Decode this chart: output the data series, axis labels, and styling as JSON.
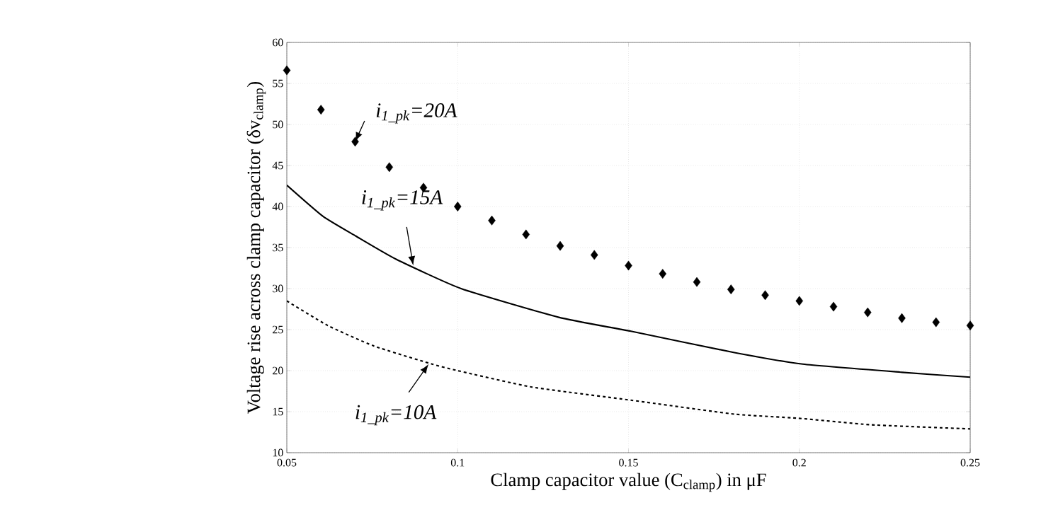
{
  "chart_data": {
    "type": "line",
    "xlabel": "Clamp capacitor value (C$_{clamp}$) in μF",
    "ylabel": "Voltage rise across clamp capacitor (δv$_{clamp}$)",
    "xlim": [
      0.05,
      0.25
    ],
    "xticks": [
      0.05,
      0.1,
      0.15,
      0.2,
      0.25
    ],
    "ylim": [
      10,
      60
    ],
    "yticks": [
      10,
      15,
      20,
      25,
      30,
      35,
      40,
      45,
      50,
      55,
      60
    ],
    "grid": true,
    "series": [
      {
        "type": "scatter",
        "marker": "diamond",
        "color": "#000000",
        "x": [
          0.05,
          0.06,
          0.07,
          0.08,
          0.09,
          0.1,
          0.11,
          0.12,
          0.13,
          0.14,
          0.15,
          0.16,
          0.17,
          0.18,
          0.19,
          0.2,
          0.21,
          0.22,
          0.23,
          0.24,
          0.25
        ],
        "values": [
          56.6,
          51.8,
          47.9,
          44.8,
          42.3,
          40.0,
          38.3,
          36.6,
          35.2,
          34.1,
          32.8,
          31.8,
          30.8,
          29.9,
          29.2,
          28.5,
          27.8,
          27.1,
          26.4,
          25.9,
          25.5
        ]
      },
      {
        "line_style": "solid",
        "color": "#000000",
        "x": [
          0.05,
          0.0606,
          0.0702,
          0.0819,
          0.101,
          0.1296,
          0.1507,
          0.181,
          0.201,
          0.23,
          0.25
        ],
        "values": [
          42.6,
          38.8,
          36.4,
          33.6,
          30.0,
          26.5,
          24.8,
          22.2,
          20.8,
          19.8,
          19.2
        ]
      },
      {
        "line_style": "dashed",
        "color": "#000000",
        "x": [
          0.05,
          0.062,
          0.0755,
          0.0925,
          0.1,
          0.1217,
          0.1507,
          0.181,
          0.1996,
          0.221,
          0.25
        ],
        "values": [
          28.5,
          25.5,
          23.0,
          20.8,
          20.0,
          18.0,
          16.4,
          14.7,
          14.2,
          13.4,
          12.9
        ]
      }
    ],
    "annotations": [
      {
        "text": "i$_{1_pk}$=20A",
        "x": 0.07,
        "y": 47.9
      },
      {
        "text": "i$_{1_pk}$=15A",
        "x": 0.087,
        "y": 32.8
      },
      {
        "text": "i$_{1_pk}$=10A",
        "x": 0.0915,
        "y": 20.8
      }
    ]
  }
}
